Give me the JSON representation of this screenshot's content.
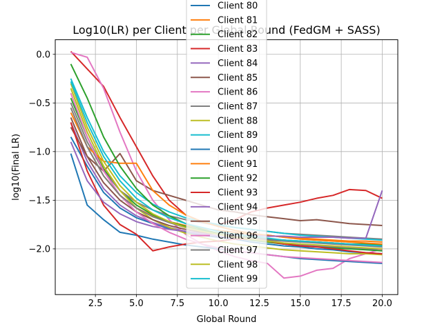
{
  "chart_data": {
    "type": "line",
    "title": "Log10(LR) per Client per Global Round (FedGM + SASS)",
    "xlabel": "Global Round",
    "ylabel": "log10(Final LR)",
    "xlim": [
      0.05,
      20.95
    ],
    "ylim": [
      -2.47,
      0.15
    ],
    "xticks": [
      2.5,
      5.0,
      7.5,
      10.0,
      12.5,
      15.0,
      17.5,
      20.0
    ],
    "xtick_labels": [
      "2.5",
      "5.0",
      "7.5",
      "10.0",
      "12.5",
      "15.0",
      "17.5",
      "20.0"
    ],
    "yticks": [
      0.0,
      -0.5,
      -1.0,
      -1.5,
      -2.0
    ],
    "ytick_labels": [
      "0.0",
      "−0.5",
      "−1.0",
      "−1.5",
      "−2.0"
    ],
    "grid": true,
    "legend_position": "upper-center",
    "x": [
      1,
      2,
      3,
      4,
      5,
      6,
      7,
      8,
      9,
      10,
      11,
      12,
      13,
      14,
      15,
      16,
      17,
      18,
      19,
      20
    ],
    "series": [
      {
        "name": "Client 80",
        "color": "#1f77b4",
        "values": [
          -0.85,
          -1.15,
          -1.42,
          -1.58,
          -1.68,
          -1.74,
          -1.79,
          -1.83,
          -1.86,
          -1.88,
          -1.9,
          -1.93,
          -1.95,
          -1.97,
          -1.98,
          -2.0,
          -2.01,
          -2.03,
          -2.04,
          -2.05
        ]
      },
      {
        "name": "Client 81",
        "color": "#ff7f0e",
        "values": [
          -0.55,
          -0.95,
          -1.25,
          -1.45,
          -1.58,
          -1.66,
          -1.72,
          -1.76,
          -1.79,
          -1.81,
          -1.83,
          -1.85,
          -1.86,
          -1.88,
          -1.89,
          -1.9,
          -1.91,
          -1.92,
          -1.92,
          -1.93
        ]
      },
      {
        "name": "Client 82",
        "color": "#2ca02c",
        "values": [
          -0.45,
          -0.85,
          -1.18,
          -1.4,
          -1.55,
          -1.65,
          -1.72,
          -1.77,
          -1.81,
          -1.84,
          -1.86,
          -1.88,
          -1.9,
          -1.91,
          -1.92,
          -1.93,
          -1.94,
          -1.95,
          -1.95,
          -1.96
        ]
      },
      {
        "name": "Client 83",
        "color": "#d62728",
        "values": [
          0.03,
          -0.15,
          -0.33,
          -0.65,
          -0.95,
          -1.25,
          -1.5,
          -1.65,
          -1.72,
          -1.75,
          -1.7,
          -1.62,
          -1.58,
          -1.55,
          -1.52,
          -1.48,
          -1.45,
          -1.39,
          -1.4,
          -1.48
        ]
      },
      {
        "name": "Client 84",
        "color": "#9467bd",
        "values": [
          -0.7,
          -1.1,
          -1.38,
          -1.55,
          -1.66,
          -1.73,
          -1.78,
          -1.82,
          -1.85,
          -1.87,
          -1.89,
          -1.91,
          -1.93,
          -1.95,
          -1.96,
          -1.97,
          -1.98,
          -1.99,
          -2.0,
          -2.01
        ]
      },
      {
        "name": "Client 85",
        "color": "#8c564b",
        "values": [
          -0.75,
          -1.05,
          -1.2,
          -1.02,
          -1.3,
          -1.4,
          -1.45,
          -1.5,
          -1.55,
          -1.6,
          -1.62,
          -1.65,
          -1.67,
          -1.69,
          -1.71,
          -1.7,
          -1.72,
          -1.74,
          -1.75,
          -1.76
        ]
      },
      {
        "name": "Client 86",
        "color": "#e377c2",
        "values": [
          0.02,
          -0.03,
          -0.35,
          -0.8,
          -1.2,
          -1.5,
          -1.7,
          -1.85,
          -1.95,
          -2.02,
          -2.08,
          -2.12,
          -2.15,
          -2.3,
          -2.28,
          -2.22,
          -2.2,
          -2.1,
          -2.05,
          -2.0
        ]
      },
      {
        "name": "Client 87",
        "color": "#7f7f7f",
        "values": [
          -0.5,
          -0.9,
          -1.2,
          -1.4,
          -1.52,
          -1.6,
          -1.66,
          -1.7,
          -1.73,
          -1.76,
          -1.78,
          -1.8,
          -1.82,
          -1.84,
          -1.85,
          -1.86,
          -1.87,
          -1.88,
          -1.89,
          -1.9
        ]
      },
      {
        "name": "Client 88",
        "color": "#bcbd22",
        "values": [
          -0.35,
          -0.8,
          -1.15,
          -1.4,
          -1.58,
          -1.7,
          -1.78,
          -1.84,
          -1.88,
          -1.92,
          -1.95,
          -1.97,
          -1.99,
          -2.01,
          -2.02,
          -2.03,
          -2.04,
          -2.05,
          -2.05,
          -2.06
        ]
      },
      {
        "name": "Client 89",
        "color": "#17becf",
        "values": [
          -0.25,
          -0.65,
          -1.0,
          -1.25,
          -1.42,
          -1.54,
          -1.62,
          -1.68,
          -1.72,
          -1.75,
          -1.78,
          -1.8,
          -1.82,
          -1.84,
          -1.86,
          -1.87,
          -1.88,
          -1.89,
          -1.9,
          -1.91
        ]
      },
      {
        "name": "Client 90",
        "color": "#1f77b4",
        "values": [
          -1.02,
          -1.55,
          -1.7,
          -1.83,
          -1.86,
          -1.9,
          -1.93,
          -1.96,
          -1.98,
          -2.0,
          -2.02,
          -2.04,
          -2.06,
          -2.08,
          -2.1,
          -2.11,
          -2.12,
          -2.13,
          -2.14,
          -2.15
        ]
      },
      {
        "name": "Client 91",
        "color": "#ff7f0e",
        "values": [
          -0.6,
          -0.95,
          -1.1,
          -1.12,
          -1.12,
          -1.4,
          -1.55,
          -1.65,
          -1.72,
          -1.77,
          -1.81,
          -1.84,
          -1.86,
          -1.88,
          -1.9,
          -1.91,
          -1.92,
          -1.93,
          -1.94,
          -1.95
        ]
      },
      {
        "name": "Client 92",
        "color": "#2ca02c",
        "values": [
          -0.1,
          -0.45,
          -0.85,
          -1.15,
          -1.38,
          -1.55,
          -1.66,
          -1.74,
          -1.8,
          -1.84,
          -1.88,
          -1.91,
          -1.93,
          -1.95,
          -1.97,
          -1.98,
          -1.99,
          -2.0,
          -2.01,
          -2.02
        ]
      },
      {
        "name": "Client 93",
        "color": "#d62728",
        "values": [
          -0.7,
          -1.2,
          -1.55,
          -1.75,
          -1.85,
          -2.02,
          -1.98,
          -1.95,
          -1.93,
          -1.92,
          -1.9,
          -1.9,
          -1.92,
          -1.95,
          -1.97,
          -1.98,
          -2.0,
          -2.02,
          -2.04,
          -2.05
        ]
      },
      {
        "name": "Client 94",
        "color": "#9467bd",
        "values": [
          -0.9,
          -1.3,
          -1.52,
          -1.64,
          -1.72,
          -1.77,
          -1.8,
          -1.82,
          -1.84,
          -1.85,
          -1.86,
          -1.86,
          -1.87,
          -1.87,
          -1.88,
          -1.88,
          -1.88,
          -1.89,
          -1.89,
          -1.4
        ]
      },
      {
        "name": "Client 95",
        "color": "#8c564b",
        "values": [
          -0.65,
          -1.05,
          -1.32,
          -1.5,
          -1.62,
          -1.7,
          -1.76,
          -1.8,
          -1.83,
          -1.85,
          -1.87,
          -1.89,
          -1.9,
          -1.91,
          -1.92,
          -1.93,
          -1.94,
          -1.95,
          -1.96,
          -1.97
        ]
      },
      {
        "name": "Client 96",
        "color": "#e377c2",
        "values": [
          -0.4,
          -0.85,
          -1.2,
          -1.45,
          -1.62,
          -1.74,
          -1.83,
          -1.9,
          -1.95,
          -1.99,
          -2.02,
          -2.04,
          -2.06,
          -2.08,
          -2.09,
          -2.1,
          -2.11,
          -2.12,
          -2.13,
          -2.14
        ]
      },
      {
        "name": "Client 97",
        "color": "#7f7f7f",
        "values": [
          -0.55,
          -0.95,
          -1.25,
          -1.45,
          -1.58,
          -1.67,
          -1.73,
          -1.78,
          -1.82,
          -1.85,
          -1.87,
          -1.89,
          -1.91,
          -1.92,
          -1.93,
          -1.94,
          -1.95,
          -1.96,
          -1.97,
          -1.98
        ]
      },
      {
        "name": "Client 98",
        "color": "#bcbd22",
        "values": [
          -0.3,
          -0.75,
          -1.1,
          -1.35,
          -1.52,
          -1.64,
          -1.72,
          -1.78,
          -1.82,
          -1.85,
          -1.88,
          -1.9,
          -1.92,
          -1.94,
          -1.95,
          -1.96,
          -1.97,
          -1.98,
          -1.99,
          -2.0
        ]
      },
      {
        "name": "Client 99",
        "color": "#17becf",
        "values": [
          -0.28,
          -0.7,
          -1.05,
          -1.3,
          -1.48,
          -1.6,
          -1.68,
          -1.74,
          -1.78,
          -1.82,
          -1.85,
          -1.87,
          -1.89,
          -1.91,
          -1.92,
          -1.93,
          -1.94,
          -1.95,
          -1.96,
          -1.97
        ]
      }
    ]
  }
}
